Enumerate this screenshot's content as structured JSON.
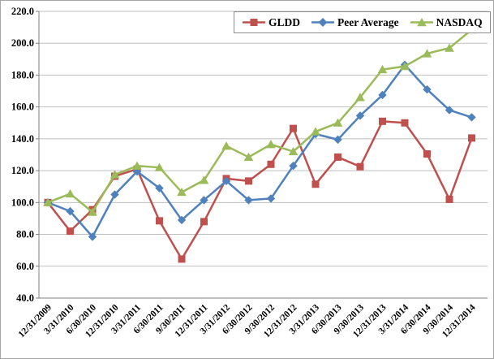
{
  "chart_data": {
    "type": "line",
    "title": "",
    "xlabel": "",
    "ylabel": "",
    "ylim": [
      40,
      220
    ],
    "ytick_step": 20,
    "y_tick_labels": [
      "220.0",
      "200.0",
      "180.0",
      "160.0",
      "140.0",
      "120.0",
      "100.0",
      "80.0",
      "60.0",
      "40.0"
    ],
    "grid": true,
    "legend_position": "top-center",
    "categories": [
      "12/31/2009",
      "3/31/2010",
      "6/30/2010",
      "12/31/2010",
      "3/31/2011",
      "6/30/2011",
      "9/30/2011",
      "12/31/2011",
      "3/31/2012",
      "6/30/2012",
      "9/30/2012",
      "12/31/2012",
      "3/31/2013",
      "6/30/2013",
      "9/30/2013",
      "12/31/2013",
      "3/31/2014",
      "6/30/2014",
      "9/30/2014",
      "12/31/2014"
    ],
    "series": [
      {
        "name": "GLDD",
        "marker": "square",
        "color": "#C0504D",
        "values": [
          100.0,
          82.0,
          95.5,
          116.5,
          121.0,
          88.5,
          64.5,
          88.0,
          115.0,
          113.5,
          124.0,
          146.5,
          111.5,
          128.5,
          122.5,
          151.0,
          150.0,
          130.5,
          102.0,
          140.5
        ]
      },
      {
        "name": "Peer Average",
        "marker": "diamond",
        "color": "#4F81BD",
        "values": [
          100.0,
          94.5,
          78.5,
          105.0,
          119.5,
          109.0,
          89.0,
          101.5,
          113.5,
          101.5,
          102.5,
          123.0,
          143.0,
          139.5,
          154.5,
          167.5,
          186.5,
          171.0,
          158.0,
          153.5
        ]
      },
      {
        "name": "NASDAQ",
        "marker": "triangle",
        "color": "#9BBB59",
        "values": [
          100.0,
          105.5,
          94.0,
          117.5,
          123.0,
          122.0,
          106.5,
          114.0,
          135.5,
          128.5,
          136.5,
          132.0,
          144.5,
          150.0,
          166.0,
          183.5,
          185.5,
          193.5,
          197.0,
          208.5
        ]
      }
    ]
  },
  "style": {
    "grid_color": "#BFBFBF",
    "axis_color": "#808080",
    "text_color": "#000000",
    "background": "#FFFFFF",
    "figure_border_color": "#A6A6A6",
    "legend_border_color": "#8C8C8C"
  }
}
